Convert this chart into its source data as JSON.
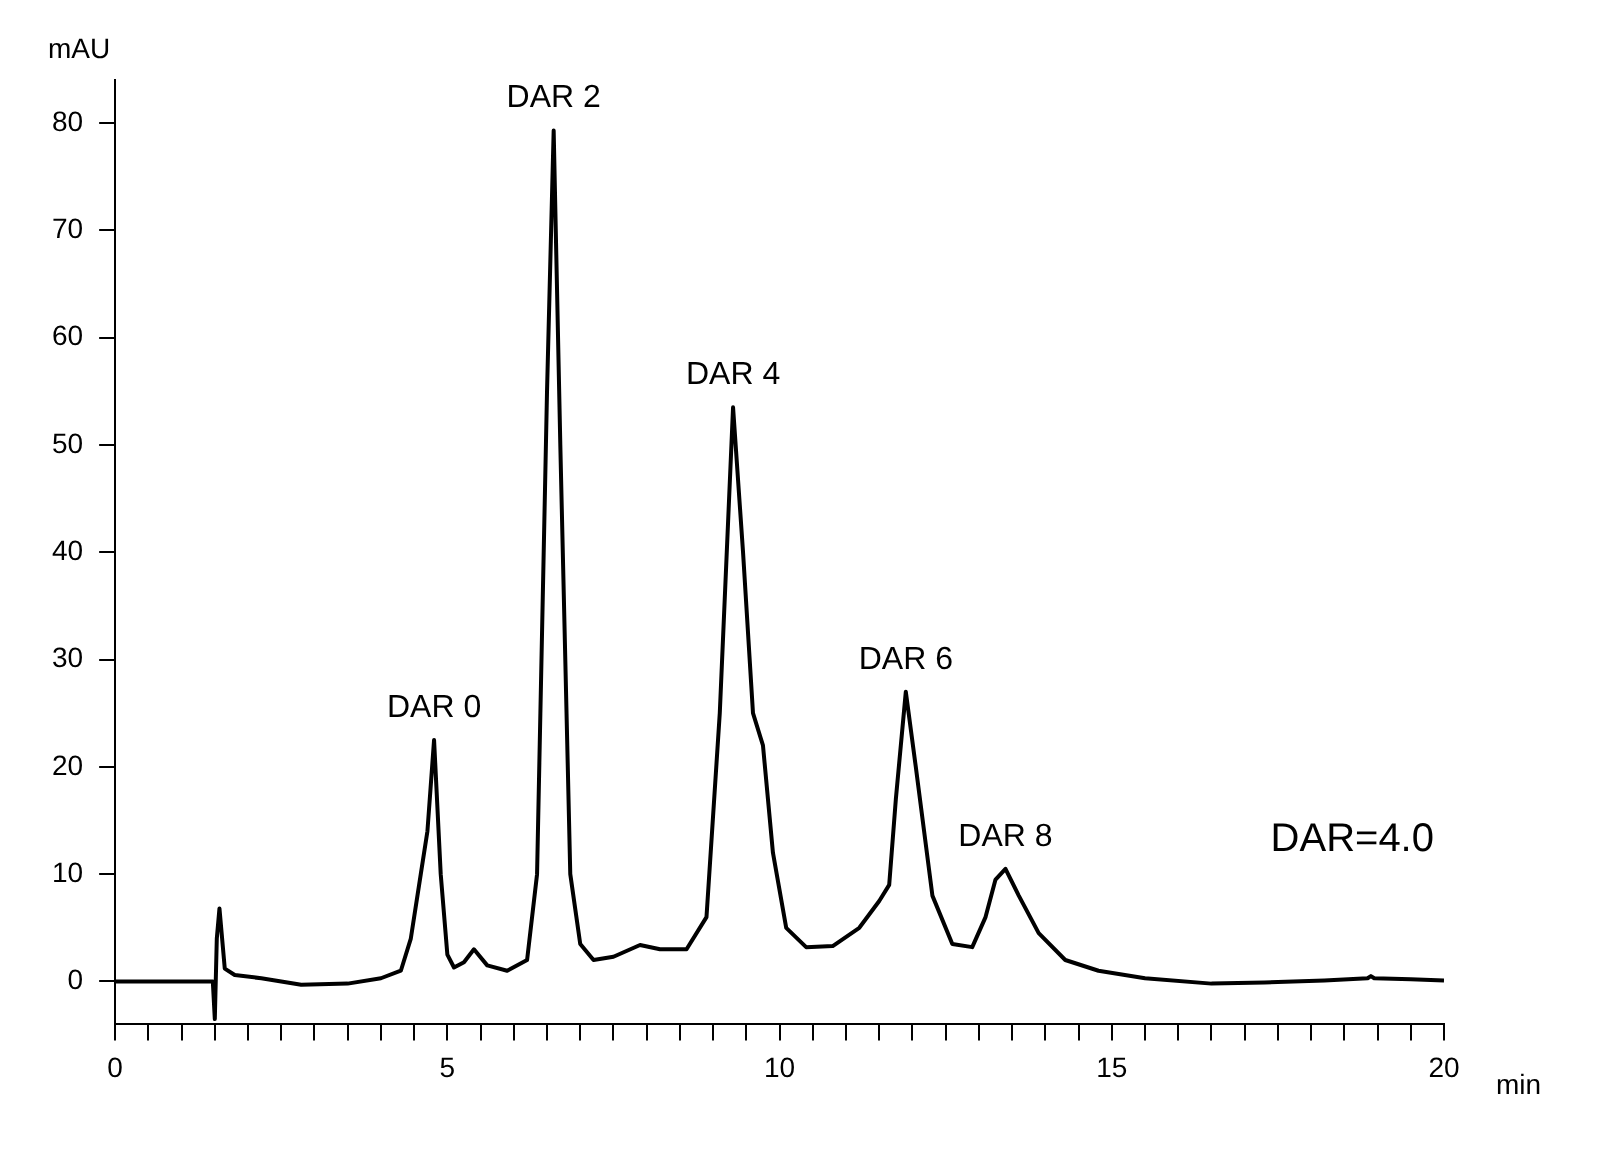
{
  "chart_data": {
    "type": "line",
    "xlabel": "min",
    "ylabel": "mAU",
    "x": [
      0,
      1.4,
      1.47,
      1.5,
      1.53,
      1.57,
      1.65,
      1.8,
      2.2,
      2.8,
      3.5,
      4.0,
      4.3,
      4.45,
      4.6,
      4.7,
      4.8,
      4.9,
      5.0,
      5.1,
      5.25,
      5.4,
      5.6,
      5.9,
      6.2,
      6.35,
      6.5,
      6.6,
      6.7,
      6.85,
      7.0,
      7.2,
      7.5,
      7.9,
      8.2,
      8.6,
      8.9,
      9.1,
      9.3,
      9.45,
      9.6,
      9.75,
      9.9,
      10.1,
      10.4,
      10.8,
      11.2,
      11.5,
      11.65,
      11.75,
      11.9,
      12.05,
      12.3,
      12.6,
      12.9,
      13.1,
      13.25,
      13.4,
      13.6,
      13.9,
      14.3,
      14.8,
      15.5,
      16.5,
      17.3,
      18.2,
      18.85,
      18.9,
      18.95,
      19.5,
      20
    ],
    "values": [
      0,
      0,
      0,
      -3.5,
      4,
      6.8,
      1.2,
      0.6,
      0.3,
      -0.3,
      -0.2,
      0.3,
      1,
      4,
      10,
      14,
      22.5,
      10,
      2.5,
      1.3,
      1.8,
      3,
      1.5,
      1,
      2,
      10,
      55,
      79.3,
      50,
      10,
      3.5,
      2,
      2.3,
      3.4,
      3,
      3,
      6,
      25,
      53.5,
      40,
      25,
      22,
      12,
      5,
      3.2,
      3.3,
      5,
      7.5,
      9,
      17,
      27,
      20,
      8,
      3.5,
      3.2,
      6,
      9.5,
      10.5,
      8,
      4.5,
      2,
      1,
      0.3,
      -0.2,
      -0.1,
      0.1,
      0.3,
      0.5,
      0.3,
      0.2,
      0.1
    ],
    "color": "#000000",
    "xlim": [
      0,
      20
    ],
    "ylim": [
      -4,
      84
    ],
    "xticks": [
      0,
      {
        "value": 0.5,
        "label": null
      },
      {
        "value": 1,
        "label": null
      },
      {
        "value": 1.5,
        "label": null
      },
      {
        "value": 2,
        "label": null
      },
      {
        "value": 2.5,
        "label": null
      },
      {
        "value": 3,
        "label": null
      },
      {
        "value": 3.5,
        "label": null
      },
      {
        "value": 4,
        "label": null
      },
      {
        "value": 4.5,
        "label": null
      },
      5,
      {
        "value": 5.5,
        "label": null
      },
      {
        "value": 6,
        "label": null
      },
      {
        "value": 6.5,
        "label": null
      },
      {
        "value": 7,
        "label": null
      },
      {
        "value": 7.5,
        "label": null
      },
      {
        "value": 8,
        "label": null
      },
      {
        "value": 8.5,
        "label": null
      },
      {
        "value": 9,
        "label": null
      },
      {
        "value": 9.5,
        "label": null
      },
      10,
      {
        "value": 10.5,
        "label": null
      },
      {
        "value": 11,
        "label": null
      },
      {
        "value": 11.5,
        "label": null
      },
      {
        "value": 12,
        "label": null
      },
      {
        "value": 12.5,
        "label": null
      },
      {
        "value": 13,
        "label": null
      },
      {
        "value": 13.5,
        "label": null
      },
      {
        "value": 14,
        "label": null
      },
      {
        "value": 14.5,
        "label": null
      },
      15,
      {
        "value": 15.5,
        "label": null
      },
      {
        "value": 16,
        "label": null
      },
      {
        "value": 16.5,
        "label": null
      },
      {
        "value": 17,
        "label": null
      },
      {
        "value": 17.5,
        "label": null
      },
      {
        "value": 18,
        "label": null
      },
      {
        "value": 18.5,
        "label": null
      },
      {
        "value": 19,
        "label": null
      },
      {
        "value": 19.5,
        "label": null
      },
      20
    ],
    "yticks": [
      0,
      10,
      20,
      30,
      40,
      50,
      60,
      70,
      80
    ],
    "grid": false,
    "legend": false,
    "marker": "none",
    "line_style": "solid",
    "annotations": [
      {
        "text": "DAR 0",
        "x": 4.8,
        "y": 22.5
      },
      {
        "text": "DAR 2",
        "x": 6.6,
        "y": 79.3
      },
      {
        "text": "DAR 4",
        "x": 9.3,
        "y": 53.5
      },
      {
        "text": "DAR 6",
        "x": 11.9,
        "y": 27
      },
      {
        "text": "DAR 8",
        "x": 13.4,
        "y": 10.5
      },
      "DAR=4.0"
    ]
  }
}
